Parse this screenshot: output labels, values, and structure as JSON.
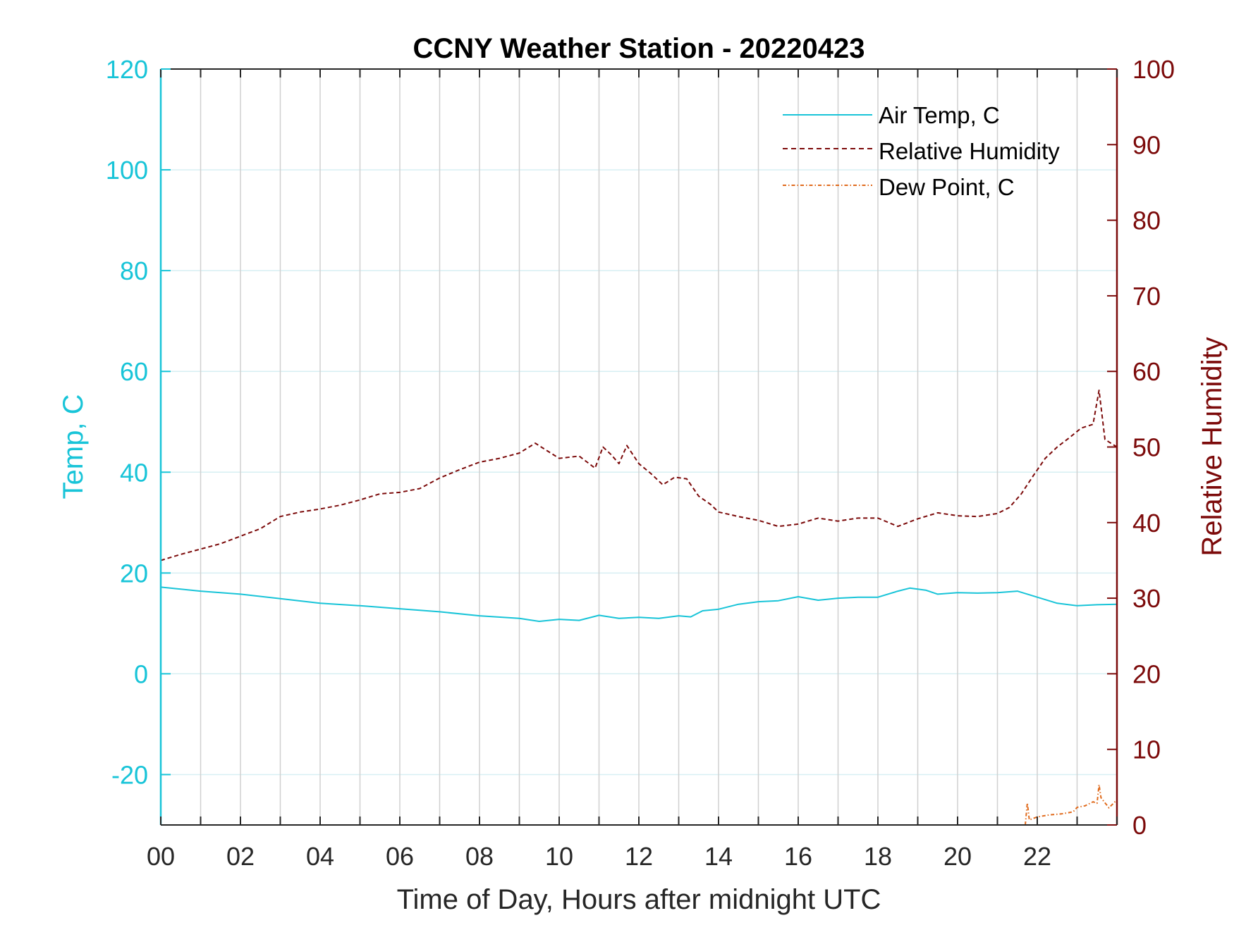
{
  "chart_data": {
    "type": "line",
    "title": "CCNY Weather Station - 20220423",
    "xlabel": "Time of Day, Hours after midnight UTC",
    "ylabel_left": "Temp, C",
    "ylabel_right": "Relative Humidity",
    "xlim": [
      0,
      24
    ],
    "ylim_left": [
      -30,
      120
    ],
    "ylim_right": [
      0,
      100
    ],
    "x_ticks": [
      0,
      2,
      4,
      6,
      8,
      10,
      12,
      14,
      16,
      18,
      20,
      22
    ],
    "x_tick_labels": [
      "00",
      "02",
      "04",
      "06",
      "08",
      "10",
      "12",
      "14",
      "16",
      "18",
      "20",
      "22"
    ],
    "y_left_ticks": [
      -20,
      0,
      20,
      40,
      60,
      80,
      100,
      120
    ],
    "y_right_ticks": [
      0,
      10,
      20,
      30,
      40,
      50,
      60,
      70,
      80,
      90,
      100
    ],
    "grid": true,
    "legend_position": "top-right",
    "colors": {
      "temp": "#18c4d8",
      "humidity": "#7c0a0a",
      "dewpoint": "#e06a1c",
      "grid": "#d0d0d0"
    },
    "series": [
      {
        "name": "Air Temp, C",
        "axis": "left",
        "style": "solid",
        "x": [
          0,
          1,
          2,
          3,
          4,
          5,
          6,
          7,
          8,
          9,
          9.5,
          10,
          10.5,
          11,
          11.5,
          12,
          12.5,
          13,
          13.3,
          13.6,
          14,
          14.5,
          15,
          15.5,
          16,
          16.5,
          17,
          17.5,
          18,
          18.5,
          18.8,
          19.2,
          19.5,
          20,
          20.5,
          21,
          21.5,
          22,
          22.5,
          23,
          23.5,
          24
        ],
        "y": [
          17.2,
          16.4,
          15.8,
          14.9,
          14.0,
          13.5,
          12.9,
          12.3,
          11.5,
          11.0,
          10.4,
          10.8,
          10.6,
          11.6,
          11.0,
          11.2,
          11.0,
          11.5,
          11.3,
          12.5,
          12.8,
          13.8,
          14.3,
          14.5,
          15.3,
          14.6,
          15.0,
          15.2,
          15.2,
          16.4,
          17.0,
          16.6,
          15.8,
          16.1,
          16.0,
          16.1,
          16.4,
          15.2,
          14.0,
          13.5,
          13.7,
          13.8
        ]
      },
      {
        "name": "Relative Humidity",
        "axis": "right",
        "style": "dashed",
        "x": [
          0,
          0.5,
          1,
          1.5,
          2,
          2.5,
          3,
          3.5,
          4,
          4.5,
          5,
          5.5,
          6,
          6.5,
          7,
          7.5,
          8,
          8.5,
          9,
          9.4,
          9.7,
          10,
          10.5,
          10.9,
          11.1,
          11.3,
          11.5,
          11.7,
          12,
          12.3,
          12.6,
          12.9,
          13.2,
          13.5,
          13.8,
          14,
          14.5,
          15,
          15.5,
          16,
          16.5,
          17,
          17.5,
          18,
          18.5,
          19,
          19.5,
          20,
          20.5,
          21,
          21.3,
          21.6,
          21.9,
          22.2,
          22.5,
          22.8,
          23.1,
          23.4,
          23.55,
          23.7,
          24
        ],
        "y": [
          35,
          35.8,
          36.5,
          37.2,
          38.2,
          39.2,
          40.8,
          41.4,
          41.8,
          42.3,
          43.0,
          43.8,
          44.0,
          44.5,
          45.9,
          47.0,
          48.0,
          48.5,
          49.2,
          50.5,
          49.5,
          48.5,
          48.8,
          47.2,
          50.0,
          49.0,
          47.8,
          50.2,
          47.8,
          46.5,
          45.0,
          46.0,
          45.8,
          43.5,
          42.4,
          41.4,
          40.8,
          40.3,
          39.5,
          39.8,
          40.6,
          40.2,
          40.6,
          40.6,
          39.5,
          40.5,
          41.3,
          40.9,
          40.8,
          41.2,
          42.0,
          43.8,
          46.2,
          48.5,
          50.0,
          51.2,
          52.5,
          53.0,
          57.5,
          51.0,
          50.0
        ]
      },
      {
        "name": "Dew Point, C",
        "axis": "left",
        "style": "dash-dot",
        "x": [
          21.7,
          21.75,
          21.8,
          22.0,
          22.3,
          22.6,
          22.9,
          23.0,
          23.2,
          23.4,
          23.5,
          23.55,
          23.6,
          23.8,
          24
        ],
        "y": [
          -30,
          -25.6,
          -29.0,
          -28.4,
          -28.0,
          -27.8,
          -27.4,
          -26.5,
          -26.2,
          -25.4,
          -25.7,
          -22.0,
          -24.6,
          -26.6,
          -25.0
        ]
      }
    ]
  }
}
